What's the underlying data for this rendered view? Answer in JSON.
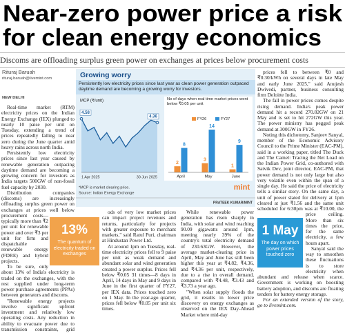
{
  "headline": {
    "lines": [
      "Near-zero power price a risk",
      "for clean energy economics"
    ]
  },
  "standfirst": "Discoms are offloading surplus green power on exchanges at prices below procurement costs",
  "byline": {
    "name": "Rituraj Baruah",
    "email": "rituraj.baruah@livemint.com",
    "dateline": "NEW DELHI"
  },
  "graphic": {
    "title": "Growing worry",
    "subtitle": "Persistently low electricity prices since last year as clean power generation outpaced daytime demand are becoming a growing worry for investors.",
    "note": "*MCP is market clearing price.",
    "source": "Source: Indian Energy Exchange",
    "logo": "mint",
    "credit": "PRATEEK KUMAR/MINT"
  },
  "chart_data": [
    {
      "type": "line",
      "y_label": "MCP (₹/unit)",
      "color": "#1c5f9e",
      "fill": "#b9d7ee",
      "categories": [
        "1 Apr 2025",
        null,
        null,
        null,
        null,
        null,
        null,
        null,
        null,
        null,
        null,
        null,
        "30 Jun 2025"
      ],
      "values": [
        4.58,
        3.9,
        4.1,
        3.4,
        3.8,
        3.2,
        3.6,
        3.0,
        3.5,
        3.8,
        4.2,
        4.5,
        4.36
      ]
    },
    {
      "type": "bar",
      "title": "No of days when real time market prices went below ₹0.05 per unit",
      "categories": [
        "April",
        "May",
        "June"
      ],
      "series": [
        {
          "name": "FY26",
          "color": "#f0903a",
          "values": [
            2,
            3,
            1
          ]
        },
        {
          "name": "FY27",
          "color": "#2f8fd6",
          "values": [
            8,
            14,
            9
          ]
        }
      ]
    }
  ],
  "pull_quotes": [
    {
      "value": "13%",
      "text": "The quantum of electricity traded on exchanges"
    },
    {
      "value": "1 May",
      "text": "The day on which power prices touched zero"
    }
  ],
  "body": {
    "columns": [
      {
        "paragraphs": [
          "Real-time market (RTM) electricity prices on the Indian Energy Exchange (IEX) plunged to nearly 10 paise per unit on Tuesday, extending a trend of prices repeatedly falling to near zero during the June quarter amid heavy rains across north India.",
          "Persistently low electricity prices since last year caused by renewable generation outpacing daytime demand are becoming a growing concern for investors as India targets 500GW of non-fossil fuel capacity by 2030.",
          "Distribution companies (discoms) are increasingly offloading surplus green power on exchanges at prices well below procurement costs—typically more than ₹2 per unit for renewable power and over ₹3 per unit for firm and dispatchable renewable energy (FDRE) and hybrid projects.",
          "To be sure, only about 13% of India's electricity is traded on the exchanges, with the rest supplied under long-term power purchase agreements (PPAs) between generators and discoms.",
          "\"Renewable energy projects involve significant upfront investment and relatively low operating costs. Any reduction in ability to evacuate power due to transmission constraints, grid requirements or peri-"
        ]
      },
      {
        "paragraphs": [
          "ods of very low market prices can impact project revenues and returns, particularly for projects with greater exposure to merchant markets,\" said Ratul Puri, chairman at Hindustan Power Ltd.",
          "At around 1pm on Tuesday, real-time electricity prices fell to 9 paise per unit as weak demand and abundant solar and wind generation created a power surplus. Prices fell below ₹0.05 31 times—8 days in April, 14 days in May and 9 days in June in the first quarter of FY27, per IEX data. Prices touched zero on 1 May. In the year-ago quarter, prices fell below ₹0.05 per unit six times."
        ]
      },
      {
        "paragraphs": [
          "While renewable power generation has risen sharply in India, with solar and wind reaching 90.09 gigawatts around 1pm, meeting nearly 39% of the country's total electricity demand of 230.63GW. However, the average market-clearing price in April, May and June has still been higher this year at ₹4.82, ₹4.36, and ₹4.36 per unit, respectively, due to a rise in overall demand, compared with ₹4.48, ₹3.43 and ₹3.73 a year ago.",
          "\"When solar supply floods the grid, it results in lower price discovery on energy exchanges as observed on the IEX Day-Ahead Market where mid-day"
        ]
      },
      {
        "paragraphs": [
          "prices fell to between ₹0 and ₹0.30/kWh on several days in late May and early June 2025,\" said Anujesh Dwivedi, partner, business consulting firm Deloitte India.",
          "The fall in power prices comes despite rising demand. India's peak power demand hit a record 270.82GW on 21 May and is set to hit 272GW this year. The power ministry has pegged peak demand at 300GW in FY26.",
          "Noting this dichotomy, Sanjeev Sanyal, member of the Economic Advisory Council to the Prime Minister (EAC-PM), said in a working paper, titled The Duck and The Camel: Tracing the Net Load on the Indian Power Grid, co-authored with Satvik Dev, joint director, EAC-PM, that power demand is not only large but also very volatile even within the span of a single day. He said the price of electricity tells a similar story. On the same day, a unit of power slated for delivery at 1pm cleared at just ₹1.56 and the same unit scheduled for 6:30pm was at ₹10.00, the price ceiling. More than six times the price, for the same electricity, a few hours apart.",
          "Sanyal said the way to smoothen these fluctuations is to store electricity when abundant and release when scarce. Government is working on boosting battery adoption, and discoms are floating tenders for battery energy storage.",
          "For an extended version of the story, go to livemint.com."
        ]
      }
    ]
  }
}
